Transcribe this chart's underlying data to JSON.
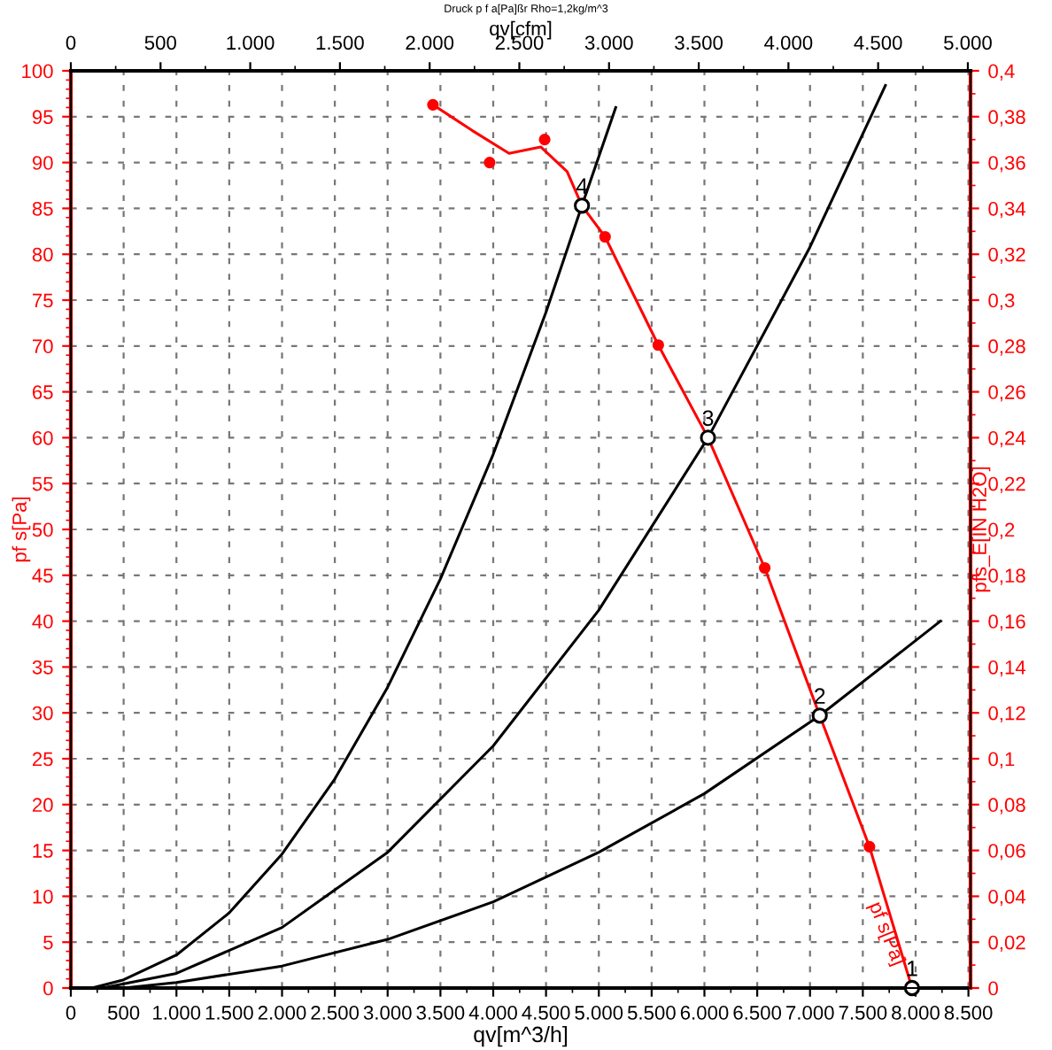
{
  "chart_data": {
    "type": "line",
    "title": "Druck p f a[Pa]ßr Rho=1,2kg/m^3",
    "xlabel": "qv[m^3/h]",
    "x2label": "qv[cfm]",
    "ylabel": "pf s[Pa]",
    "y2label": "pfs_E[IN H2O]",
    "xlim": [
      0,
      8520
    ],
    "xticks": [
      0,
      {
        "value": 500,
        "label": "500"
      },
      {
        "value": 1000,
        "label": "1.000"
      },
      {
        "value": 1500,
        "label": "1.500"
      },
      {
        "value": 2000,
        "label": "2.000"
      },
      {
        "value": 2500,
        "label": "2.500"
      },
      {
        "value": 3000,
        "label": "3.000"
      },
      {
        "value": 3500,
        "label": "3.500"
      },
      {
        "value": 4000,
        "label": "4.000"
      },
      {
        "value": 4500,
        "label": "4.500"
      },
      {
        "value": 5000,
        "label": "5.000"
      },
      {
        "value": 5500,
        "label": "5.500"
      },
      {
        "value": 6000,
        "label": "6.000"
      },
      {
        "value": 6500,
        "label": "6.500"
      },
      {
        "value": 7000,
        "label": "7.000"
      },
      {
        "value": 7500,
        "label": "7.500"
      },
      {
        "value": 8000,
        "label": "8.000"
      },
      {
        "value": 8500,
        "label": "8.500"
      }
    ],
    "x2lim": [
      0,
      5015
    ],
    "x2ticks": [
      0,
      500,
      {
        "value": 1000,
        "label": "1.000"
      },
      {
        "value": 1500,
        "label": "1.500"
      },
      {
        "value": 2000,
        "label": "2.000"
      },
      {
        "value": 2500,
        "label": "2.500"
      },
      {
        "value": 3000,
        "label": "3.000"
      },
      {
        "value": 3500,
        "label": "3.500"
      },
      {
        "value": 4000,
        "label": "4.000"
      },
      {
        "value": 4500,
        "label": "4.500"
      },
      {
        "value": 5000,
        "label": "5.000"
      }
    ],
    "ylim": [
      0,
      100
    ],
    "yticks": [
      0,
      5,
      10,
      15,
      20,
      25,
      30,
      35,
      40,
      45,
      50,
      55,
      60,
      65,
      70,
      75,
      80,
      85,
      90,
      95,
      100
    ],
    "y2lim": [
      0,
      0.4
    ],
    "y2ticks": [
      0,
      {
        "value": 0.02,
        "label": "0,02"
      },
      {
        "value": 0.04,
        "label": "0,04"
      },
      {
        "value": 0.06,
        "label": "0,06"
      },
      {
        "value": 0.08,
        "label": "0,08"
      },
      {
        "value": 0.1,
        "label": "0,1"
      },
      {
        "value": 0.12,
        "label": "0,12"
      },
      {
        "value": 0.14,
        "label": "0,14"
      },
      {
        "value": 0.16,
        "label": "0,16"
      },
      {
        "value": 0.18,
        "label": "0,18"
      },
      {
        "value": 0.2,
        "label": "0,2"
      },
      {
        "value": 0.22,
        "label": "0,22"
      },
      {
        "value": 0.24,
        "label": "0,24"
      },
      {
        "value": 0.26,
        "label": "0,26"
      },
      {
        "value": 0.28,
        "label": "0,28"
      },
      {
        "value": 0.3,
        "label": "0,3"
      },
      {
        "value": 0.32,
        "label": "0,32"
      },
      {
        "value": 0.34,
        "label": "0,34"
      },
      {
        "value": 0.36,
        "label": "0,36"
      },
      {
        "value": 0.38,
        "label": "0,38"
      },
      {
        "value": 0.4,
        "label": "0,4"
      }
    ],
    "grid": true,
    "line_style": "solid",
    "legend": false,
    "series": [
      {
        "color": "#000000",
        "x": [
          200,
          500,
          1000,
          1500,
          2000,
          2500,
          3000,
          3500,
          4000,
          4500,
          4840,
          5160
        ],
        "values": [
          0,
          0.9,
          3.6,
          8.2,
          14.6,
          22.8,
          32.8,
          44.6,
          58.2,
          73.7,
          85.3,
          96.0
        ]
      },
      {
        "color": "#000000",
        "x": [
          300,
          1000,
          2000,
          3000,
          4000,
          5000,
          6034,
          7000,
          7714
        ],
        "values": [
          0,
          1.6,
          6.6,
          14.8,
          26.4,
          41.2,
          60.0,
          80.8,
          98.4
        ]
      },
      {
        "color": "#000000",
        "x": [
          500,
          1000,
          2000,
          3000,
          4000,
          5000,
          6000,
          7092,
          8235
        ],
        "values": [
          0,
          0.6,
          2.4,
          5.3,
          9.4,
          14.8,
          21.2,
          29.7,
          40.0
        ]
      },
      {
        "name": "pf s[Pa]",
        "color": "#ff0000",
        "x": [
          3429,
          3800,
          4150,
          4450,
          4700,
          4840,
          5059,
          5563,
          6034,
          6571,
          7092,
          7563,
          7966
        ],
        "values": [
          96.3,
          93.5,
          91.0,
          91.7,
          89.0,
          85.3,
          81.9,
          70.1,
          60.0,
          45.8,
          29.7,
          15.4,
          0
        ]
      },
      {
        "type": "scatter",
        "color": "#ff0000",
        "marker": "circle",
        "x": [
          3429,
          3966,
          4487,
          5059,
          5563,
          6571,
          7563
        ],
        "values": [
          96.3,
          90.0,
          92.5,
          81.9,
          70.1,
          45.8,
          15.4
        ]
      },
      {
        "type": "scatter",
        "color": "#000000",
        "marker": "circle",
        "x": [
          7966,
          7092,
          6034,
          4840
        ],
        "values": [
          0,
          29.7,
          60.0,
          85.3
        ]
      }
    ],
    "annotations": [
      {
        "text": "1",
        "x": 7966,
        "y": 0
      },
      {
        "text": "2",
        "x": 7092,
        "y": 29.7
      },
      {
        "text": "3",
        "x": 6034,
        "y": 60.0
      },
      {
        "text": "4",
        "x": 4840,
        "y": 85.3
      }
    ]
  }
}
